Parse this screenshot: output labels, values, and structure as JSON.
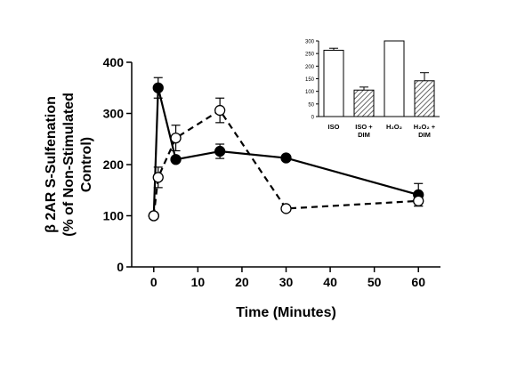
{
  "chart_data": [
    {
      "type": "line",
      "xlabel": "Time (Minutes)",
      "ylabel_lines": [
        "β 2AR S-Sulfenation",
        "(% of Non-Stimulated",
        "Control)"
      ],
      "xlim": [
        -5,
        65
      ],
      "ylim": [
        0,
        400
      ],
      "xticks": [
        0,
        10,
        20,
        30,
        40,
        50,
        60
      ],
      "yticks": [
        0,
        100,
        200,
        300,
        400
      ],
      "grid": false,
      "legend": "none",
      "series": [
        {
          "style": "solid",
          "marker": "filled-circle",
          "color": "#000000",
          "x": [
            0,
            1,
            5,
            15,
            30,
            60
          ],
          "values": [
            100,
            350,
            210,
            226,
            213,
            141
          ],
          "error": [
            0,
            20,
            0,
            14,
            0,
            22
          ]
        },
        {
          "style": "dashed",
          "marker": "open-circle",
          "color": "#000000",
          "x": [
            0,
            1,
            5,
            15,
            30,
            60
          ],
          "values": [
            100,
            175,
            252,
            306,
            114,
            129
          ],
          "error": [
            0,
            20,
            25,
            24,
            0,
            10
          ]
        }
      ]
    },
    {
      "type": "bar",
      "position": "inset-top-right",
      "categories": [
        [
          "ISO"
        ],
        [
          "ISO +",
          "DIM"
        ],
        [
          "H₂O₂"
        ],
        [
          "H₂O₂ +",
          "DIM"
        ]
      ],
      "values": [
        263,
        105,
        300,
        142
      ],
      "error": [
        8,
        12,
        0,
        32
      ],
      "fill": [
        "white",
        "hatched",
        "white",
        "hatched"
      ],
      "ylim": [
        0,
        300
      ],
      "yticks": [
        0,
        50,
        100,
        150,
        200,
        250,
        300
      ]
    }
  ]
}
